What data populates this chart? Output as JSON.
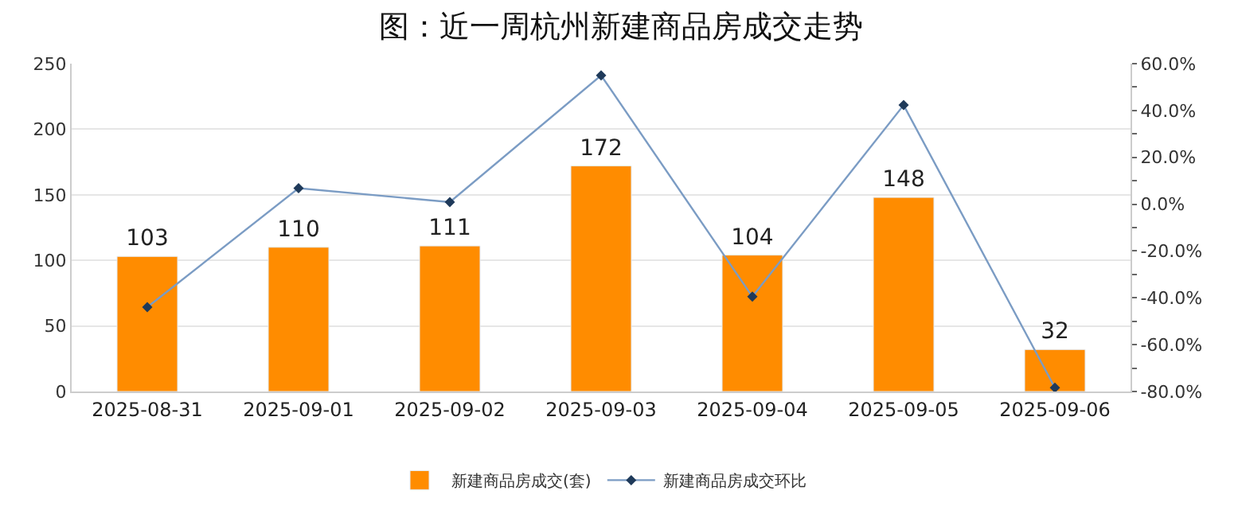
{
  "chart_data": {
    "type": "bar",
    "title": "图：近一周杭州新建商品房成交走势",
    "categories": [
      "2025-08-31",
      "2025-09-01",
      "2025-09-02",
      "2025-09-03",
      "2025-09-04",
      "2025-09-05",
      "2025-09-06"
    ],
    "series": [
      {
        "name": "新建商品房成交(套)",
        "color": "#ff8c00",
        "values": [
          103,
          110,
          111,
          172,
          104,
          148,
          32
        ],
        "value_labels": [
          "103",
          "110",
          "111",
          "172",
          "104",
          "148",
          "32"
        ]
      },
      {
        "name": "新建商品房成交环比",
        "type": "line",
        "axis": "y2",
        "color": "#7b9cc4",
        "marker": "diamond",
        "values": [
          -44.0,
          6.8,
          0.9,
          55.0,
          -39.5,
          42.3,
          -78.4
        ]
      }
    ],
    "ylim": [
      0,
      250
    ],
    "yticks": [
      0,
      50,
      100,
      150,
      200,
      250
    ],
    "y2lim": [
      -80,
      60
    ],
    "y2ticks": [
      {
        "value": -80,
        "label": "-80.0%"
      },
      {
        "value": -70,
        "label": null
      },
      {
        "value": -60,
        "label": "-60.0%"
      },
      {
        "value": -50,
        "label": null
      },
      {
        "value": -40,
        "label": "-40.0%"
      },
      {
        "value": -30,
        "label": null
      },
      {
        "value": -20,
        "label": "-20.0%"
      },
      {
        "value": -10,
        "label": null
      },
      {
        "value": 0,
        "label": "0.0%"
      },
      {
        "value": 10,
        "label": null
      },
      {
        "value": 20,
        "label": "20.0%"
      },
      {
        "value": 30,
        "label": null
      },
      {
        "value": 40,
        "label": "40.0%"
      },
      {
        "value": 50,
        "label": null
      },
      {
        "value": 60,
        "label": "60.0%"
      }
    ],
    "grid": "y",
    "legend": "bottom"
  }
}
